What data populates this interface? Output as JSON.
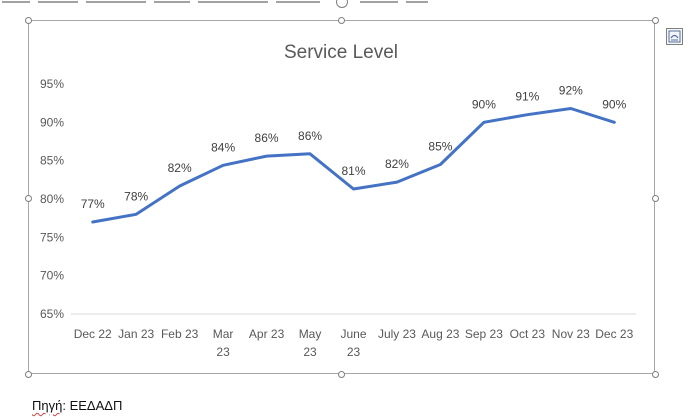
{
  "caption": {
    "source_label": "Πηγή",
    "source_sep": ": ",
    "source_value": "ΕΕΔΑΔΠ"
  },
  "chart_data": {
    "type": "line",
    "title": "Service Level",
    "categories": [
      "Dec 22",
      "Jan 23",
      "Feb 23",
      "Mar 23",
      "Apr 23",
      "May 23",
      "June 23",
      "July 23",
      "Aug 23",
      "Sep 23",
      "Oct 23",
      "Nov 23",
      "Dec 23"
    ],
    "category_lines": [
      [
        "Dec 22"
      ],
      [
        "Jan 23"
      ],
      [
        "Feb 23"
      ],
      [
        "Mar",
        "23"
      ],
      [
        "Apr 23"
      ],
      [
        "May",
        "23"
      ],
      [
        "June",
        "23"
      ],
      [
        "July 23"
      ],
      [
        "Aug 23"
      ],
      [
        "Sep 23"
      ],
      [
        "Oct 23"
      ],
      [
        "Nov 23"
      ],
      [
        "Dec 23"
      ]
    ],
    "values": [
      77,
      78,
      82,
      84,
      86,
      86,
      81,
      82,
      85,
      90,
      91,
      92,
      90
    ],
    "plot_values": [
      77.0,
      78.0,
      81.7,
      84.4,
      85.6,
      85.9,
      81.3,
      82.2,
      84.5,
      90.0,
      91.0,
      91.8,
      90.0
    ],
    "data_labels": [
      "77%",
      "78%",
      "82%",
      "84%",
      "86%",
      "86%",
      "81%",
      "82%",
      "85%",
      "90%",
      "91%",
      "92%",
      "90%"
    ],
    "ylim": [
      65,
      95
    ],
    "yticks": [
      65,
      70,
      75,
      80,
      85,
      90,
      95
    ],
    "ytick_labels": [
      "65%",
      "70%",
      "75%",
      "80%",
      "85%",
      "90%",
      "95%"
    ],
    "line_color": "#4472c4",
    "grid": false,
    "legend": "none"
  }
}
